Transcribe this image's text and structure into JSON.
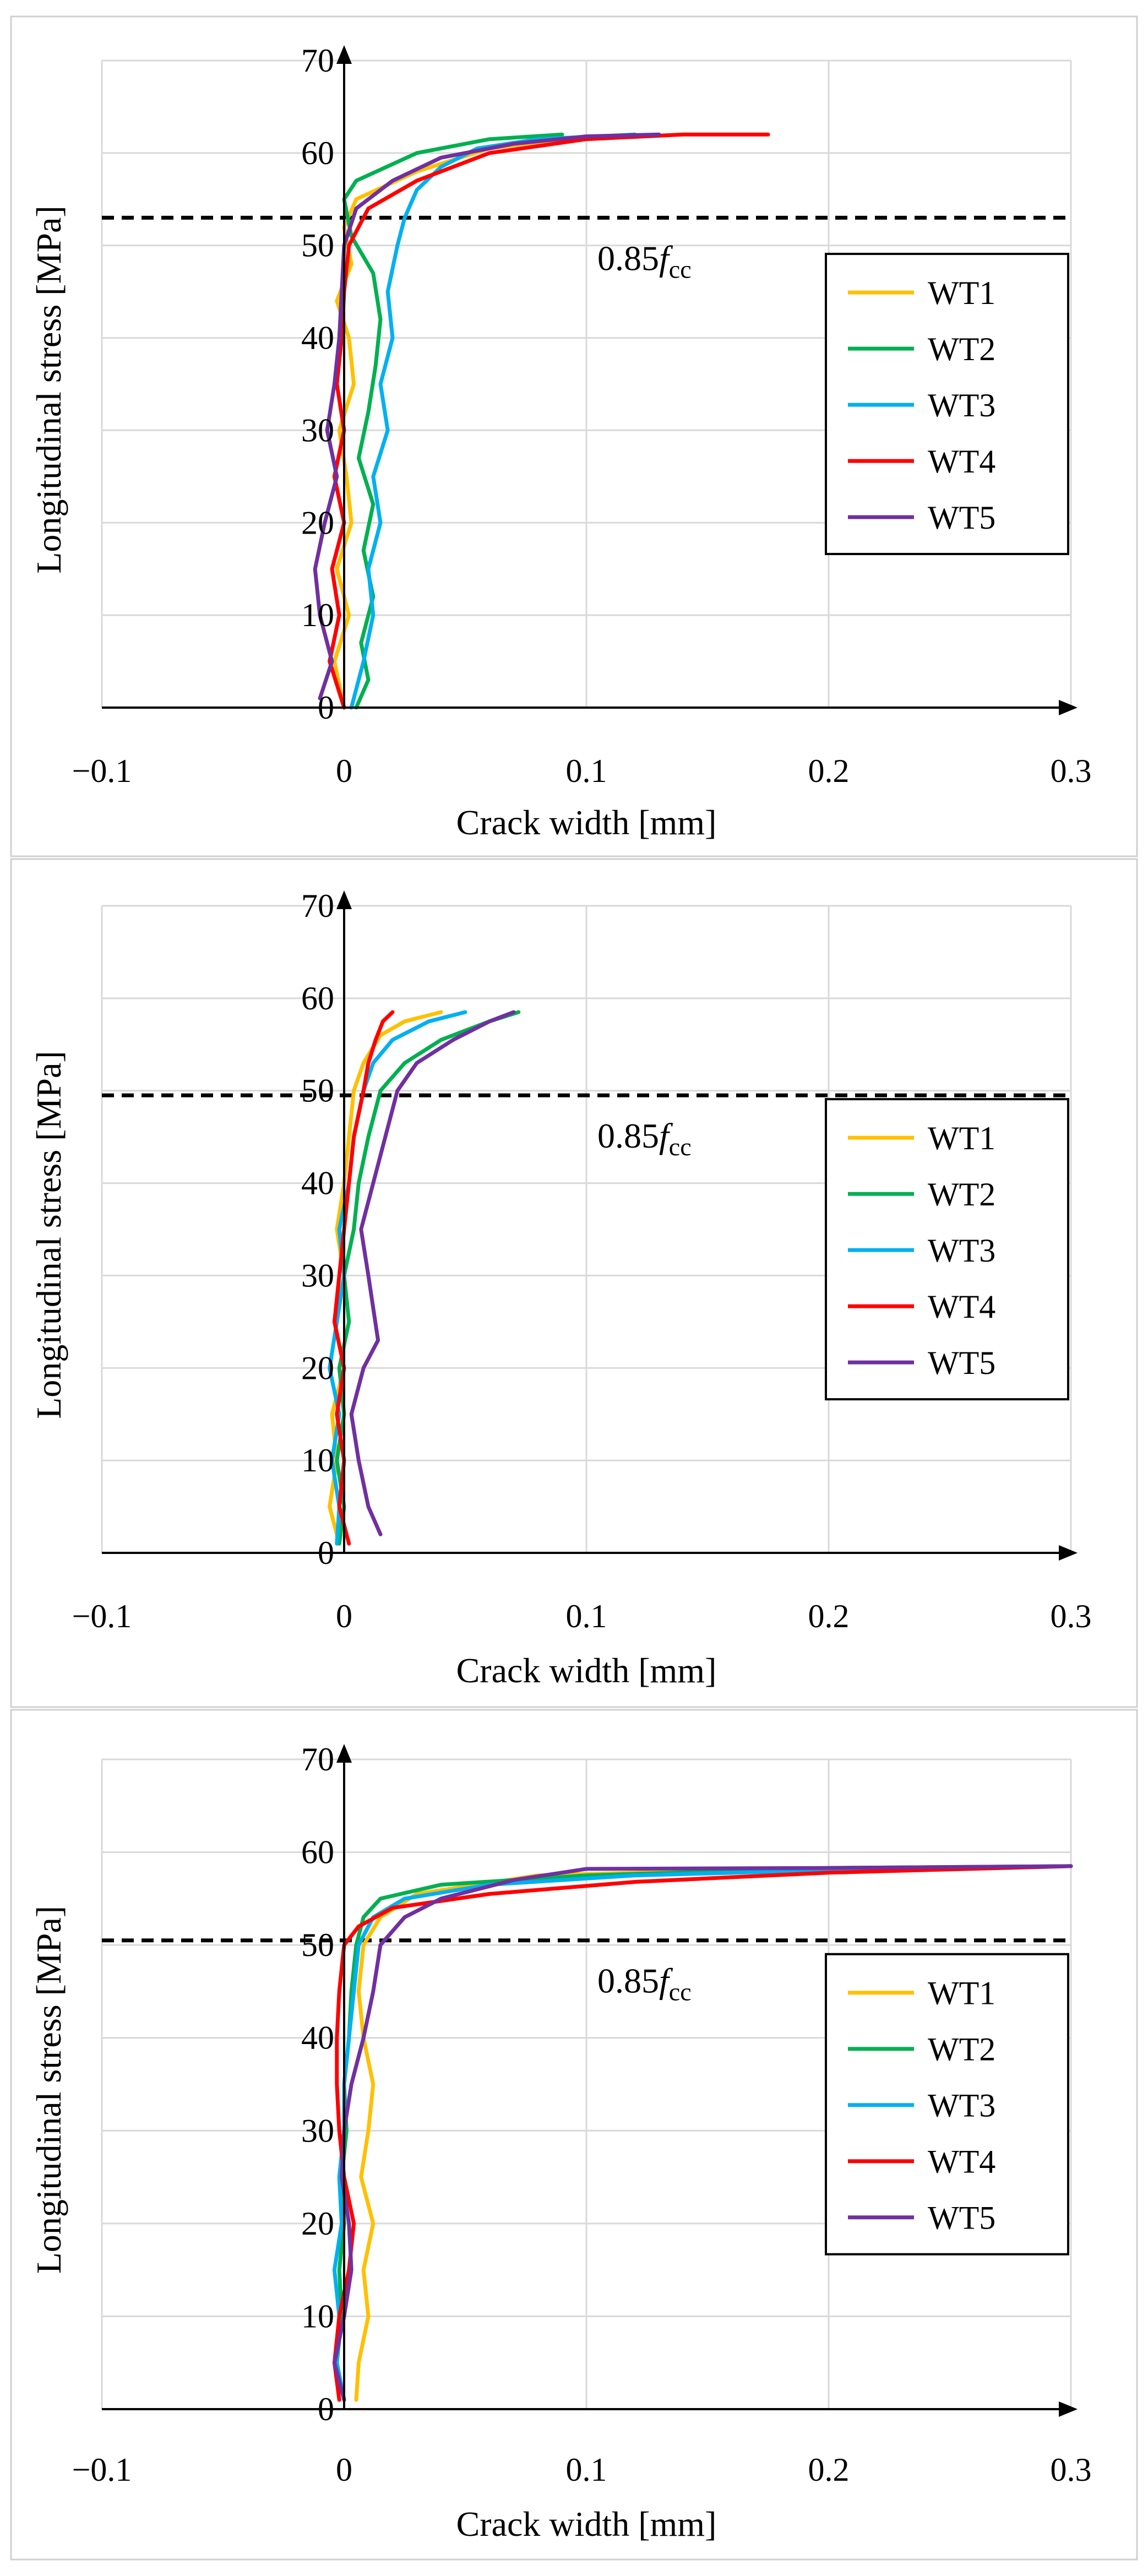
{
  "chart_data": [
    {
      "type": "line",
      "xlabel": "Crack width [mm]",
      "ylabel": "Longitudinal stress [MPa]",
      "xlim": [
        -0.1,
        0.3
      ],
      "ylim": [
        0,
        70
      ],
      "xticks": [
        "−0.1",
        "0",
        "0.1",
        "0.2",
        "0.3"
      ],
      "yticks": [
        "0",
        "10",
        "20",
        "30",
        "40",
        "50",
        "60",
        "70"
      ],
      "grid": true,
      "legend_position": "right",
      "reference_line": {
        "y": 53,
        "label_main": "0.85",
        "label_f": "f",
        "label_sub": "cc"
      },
      "series": [
        {
          "name": "WT1",
          "color": "#FFC000",
          "x": [
            0.0,
            -0.004,
            0.002,
            -0.003,
            0.003,
            0.001,
            -0.002,
            0.004,
            0.002,
            -0.003,
            0.003,
            0.0,
            0.005,
            0.03,
            0.06,
            0.09,
            0.12
          ],
          "y": [
            0,
            5,
            10,
            15,
            20,
            25,
            30,
            35,
            40,
            44,
            48,
            52,
            55,
            58,
            60.5,
            61.5,
            62
          ]
        },
        {
          "name": "WT2",
          "color": "#00B050",
          "x": [
            0.005,
            0.01,
            0.007,
            0.012,
            0.008,
            0.012,
            0.006,
            0.01,
            0.013,
            0.015,
            0.012,
            0.003,
            0.0,
            0.005,
            0.03,
            0.06,
            0.09
          ],
          "y": [
            0,
            3,
            7,
            12,
            17,
            22,
            27,
            32,
            37,
            42,
            47,
            51,
            55,
            57,
            60,
            61.5,
            62
          ]
        },
        {
          "name": "WT3",
          "color": "#00B0F0",
          "x": [
            0.003,
            0.008,
            0.012,
            0.01,
            0.015,
            0.012,
            0.018,
            0.015,
            0.02,
            0.018,
            0.022,
            0.025,
            0.03,
            0.04,
            0.055,
            0.08,
            0.12
          ],
          "y": [
            0,
            5,
            10,
            15,
            20,
            25,
            30,
            35,
            40,
            45,
            50,
            53,
            56,
            58.5,
            60.5,
            61.5,
            62
          ]
        },
        {
          "name": "WT4",
          "color": "#FF0000",
          "x": [
            0.0,
            -0.006,
            -0.002,
            -0.005,
            0.0,
            -0.004,
            0.0,
            -0.003,
            -0.001,
            0.0,
            0.002,
            0.01,
            0.03,
            0.06,
            0.1,
            0.14,
            0.175
          ],
          "y": [
            0,
            5,
            10,
            15,
            20,
            25,
            30,
            35,
            40,
            45,
            50,
            54,
            57,
            60,
            61.5,
            62,
            62
          ]
        },
        {
          "name": "WT5",
          "color": "#7030A0",
          "x": [
            -0.01,
            -0.005,
            -0.01,
            -0.012,
            -0.008,
            -0.003,
            -0.007,
            -0.004,
            -0.002,
            -0.001,
            0.0,
            0.005,
            0.02,
            0.04,
            0.07,
            0.1,
            0.13
          ],
          "y": [
            1,
            5,
            10,
            15,
            20,
            25,
            30,
            35,
            40,
            45,
            50,
            54,
            57,
            59.5,
            61,
            61.8,
            62
          ]
        }
      ]
    },
    {
      "type": "line",
      "xlabel": "Crack width [mm]",
      "ylabel": "Longitudinal stress [MPa]",
      "xlim": [
        -0.1,
        0.3
      ],
      "ylim": [
        0,
        70
      ],
      "xticks": [
        "−0.1",
        "0",
        "0.1",
        "0.2",
        "0.3"
      ],
      "yticks": [
        "0",
        "10",
        "20",
        "30",
        "40",
        "50",
        "60",
        "70"
      ],
      "grid": true,
      "legend_position": "right",
      "reference_line": {
        "y": 49.5,
        "label_main": "0.85",
        "label_f": "f",
        "label_sub": "cc"
      },
      "series": [
        {
          "name": "WT1",
          "color": "#FFC000",
          "x": [
            -0.002,
            -0.006,
            -0.003,
            -0.005,
            0.0,
            -0.004,
            0.0,
            -0.003,
            0.0,
            0.002,
            0.004,
            0.008,
            0.015,
            0.025,
            0.04
          ],
          "y": [
            1,
            5,
            10,
            15,
            20,
            25,
            30,
            35,
            40,
            45,
            50,
            53,
            56,
            57.5,
            58.5
          ]
        },
        {
          "name": "WT2",
          "color": "#00B050",
          "x": [
            -0.002,
            0.0,
            -0.003,
            0.0,
            -0.002,
            0.002,
            0.0,
            0.004,
            0.006,
            0.01,
            0.015,
            0.025,
            0.04,
            0.06,
            0.072
          ],
          "y": [
            1,
            5,
            10,
            15,
            20,
            25,
            30,
            35,
            40,
            45,
            50,
            53,
            55.5,
            57.5,
            58.5
          ]
        },
        {
          "name": "WT3",
          "color": "#00B0F0",
          "x": [
            -0.003,
            -0.002,
            -0.005,
            -0.002,
            -0.006,
            -0.003,
            0.0,
            -0.002,
            0.002,
            0.004,
            0.008,
            0.012,
            0.02,
            0.035,
            0.05
          ],
          "y": [
            1,
            5,
            10,
            15,
            20,
            25,
            30,
            35,
            40,
            45,
            50,
            53,
            55.5,
            57.5,
            58.5
          ]
        },
        {
          "name": "WT4",
          "color": "#FF0000",
          "x": [
            0.002,
            -0.002,
            0.0,
            -0.003,
            0.0,
            -0.004,
            -0.002,
            0.0,
            0.002,
            0.004,
            0.008,
            0.01,
            0.013,
            0.016,
            0.02
          ],
          "y": [
            1,
            5,
            10,
            15,
            20,
            25,
            30,
            35,
            40,
            45,
            50,
            53,
            55.5,
            57.5,
            58.5
          ]
        },
        {
          "name": "WT5",
          "color": "#7030A0",
          "x": [
            0.015,
            0.01,
            0.006,
            0.003,
            0.008,
            0.014,
            0.01,
            0.007,
            0.012,
            0.017,
            0.022,
            0.03,
            0.045,
            0.06,
            0.07
          ],
          "y": [
            2,
            5,
            10,
            15,
            20,
            23,
            30,
            35,
            40,
            45,
            50,
            53,
            55.5,
            57.5,
            58.5
          ]
        }
      ]
    },
    {
      "type": "line",
      "xlabel": "Crack width [mm]",
      "ylabel": "Longitudinal stress [MPa]",
      "xlim": [
        -0.1,
        0.3
      ],
      "ylim": [
        0,
        70
      ],
      "xticks": [
        "−0.1",
        "0",
        "0.1",
        "0.2",
        "0.3"
      ],
      "yticks": [
        "0",
        "10",
        "20",
        "30",
        "40",
        "50",
        "60",
        "70"
      ],
      "grid": true,
      "legend_position": "right",
      "reference_line": {
        "y": 50.5,
        "label_main": "0.85",
        "label_f": "f",
        "label_sub": "cc"
      },
      "series": [
        {
          "name": "WT1",
          "color": "#FFC000",
          "x": [
            0.005,
            0.006,
            0.01,
            0.008,
            0.012,
            0.007,
            0.01,
            0.012,
            0.008,
            0.006,
            0.008,
            0.015,
            0.03,
            0.08,
            0.15,
            0.25,
            0.3
          ],
          "y": [
            1,
            5,
            10,
            15,
            20,
            25,
            30,
            35,
            40,
            45,
            50,
            53,
            55.5,
            57.5,
            58,
            58.3,
            58.5
          ]
        },
        {
          "name": "WT2",
          "color": "#00B050",
          "x": [
            0.0,
            -0.003,
            -0.001,
            -0.002,
            0.0,
            -0.001,
            0.001,
            0.0,
            0.002,
            0.003,
            0.005,
            0.008,
            0.015,
            0.04,
            0.1,
            0.2,
            0.3
          ],
          "y": [
            1,
            5,
            10,
            15,
            20,
            25,
            30,
            35,
            40,
            45,
            50,
            53,
            55,
            56.5,
            57.5,
            58.3,
            58.5
          ]
        },
        {
          "name": "WT3",
          "color": "#00B0F0",
          "x": [
            0.0,
            -0.003,
            -0.002,
            -0.004,
            -0.001,
            -0.002,
            0.0,
            0.0,
            0.002,
            0.004,
            0.006,
            0.012,
            0.025,
            0.06,
            0.12,
            0.22,
            0.3
          ],
          "y": [
            1,
            5,
            10,
            15,
            20,
            25,
            30,
            35,
            40,
            45,
            50,
            53,
            55,
            56.5,
            57.5,
            58.2,
            58.5
          ]
        },
        {
          "name": "WT4",
          "color": "#FF0000",
          "x": [
            -0.002,
            -0.004,
            -0.002,
            0.002,
            0.004,
            0.0,
            -0.002,
            -0.003,
            -0.003,
            -0.002,
            0.0,
            0.006,
            0.02,
            0.06,
            0.12,
            0.2,
            0.3
          ],
          "y": [
            1,
            5,
            10,
            15,
            20,
            25,
            30,
            35,
            40,
            45,
            50,
            52,
            54,
            55.5,
            56.8,
            57.8,
            58.5
          ]
        },
        {
          "name": "WT5",
          "color": "#7030A0",
          "x": [
            0.0,
            -0.004,
            0.0,
            0.003,
            0.002,
            -0.001,
            0.0,
            0.003,
            0.008,
            0.012,
            0.015,
            0.025,
            0.04,
            0.07,
            0.1,
            0.2,
            0.3
          ],
          "y": [
            1,
            5,
            10,
            15,
            20,
            25,
            30,
            35,
            40,
            45,
            50,
            53,
            55,
            57,
            58.2,
            58.3,
            58.5
          ]
        }
      ]
    }
  ]
}
